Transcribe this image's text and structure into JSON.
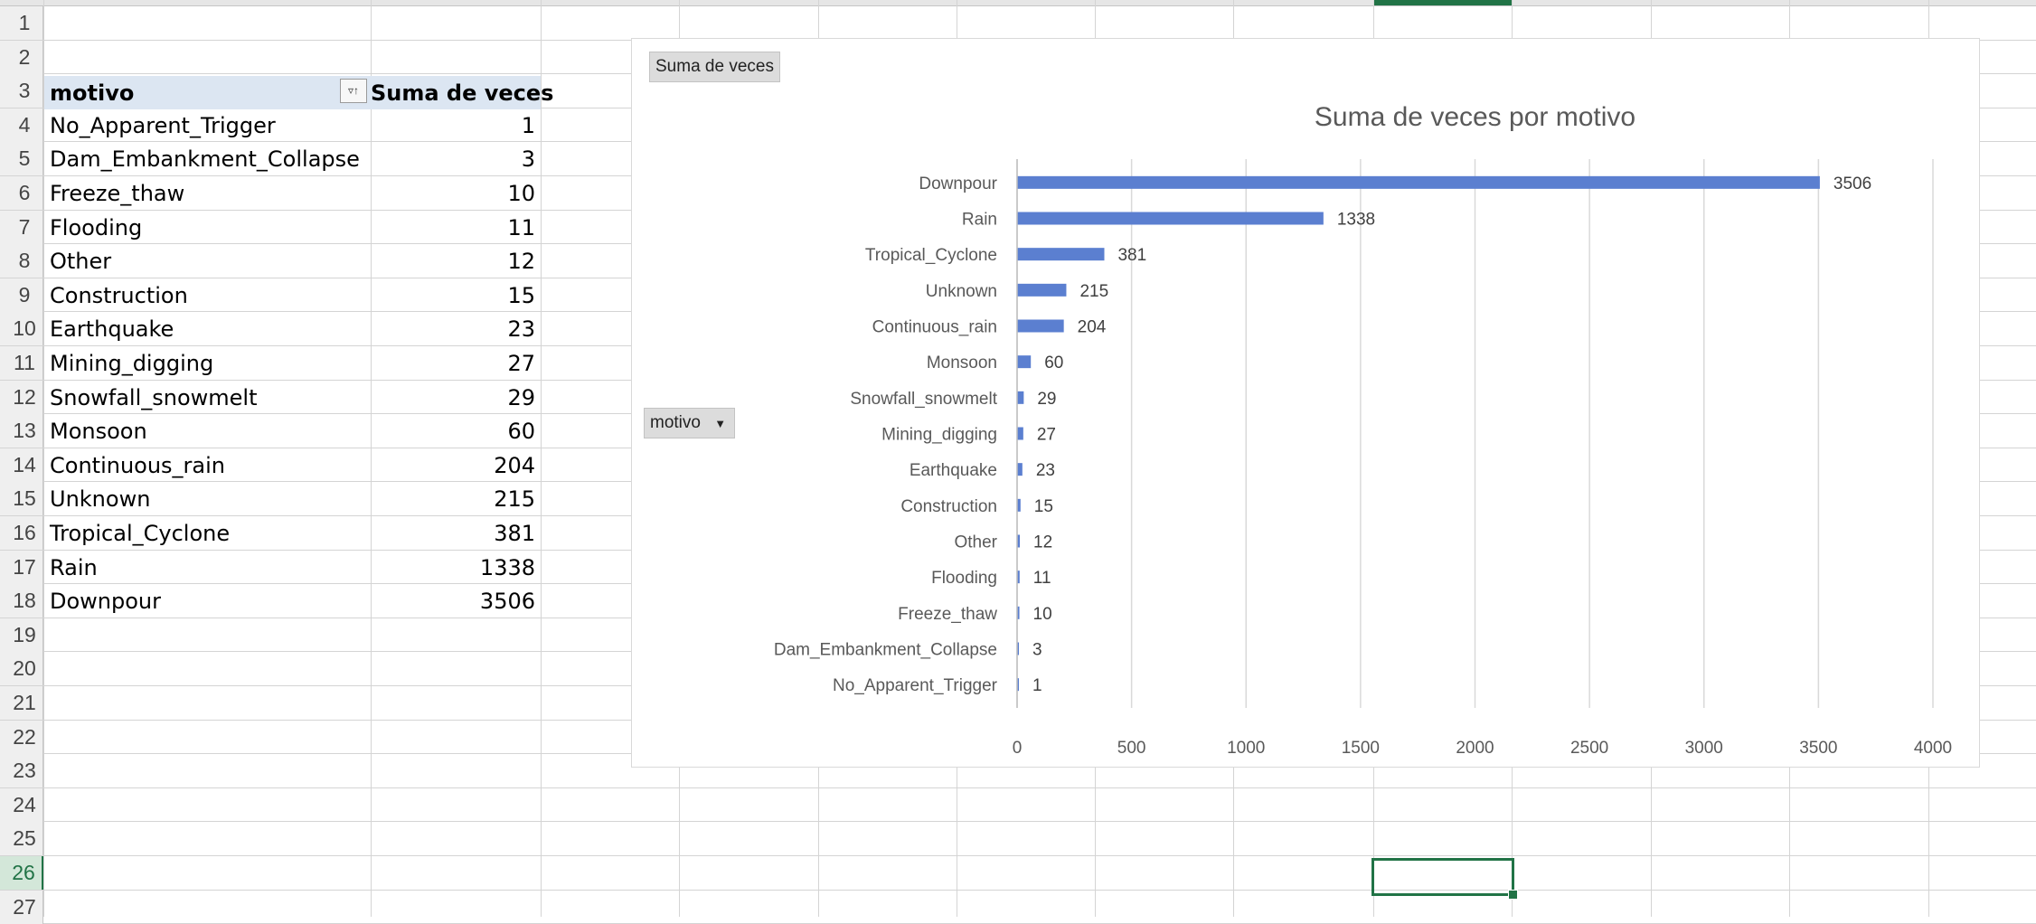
{
  "sheet": {
    "row_numbers": [
      "1",
      "2",
      "3",
      "4",
      "5",
      "6",
      "7",
      "8",
      "9",
      "10",
      "11",
      "12",
      "13",
      "14",
      "15",
      "16",
      "17",
      "18",
      "19",
      "20",
      "21",
      "22",
      "23",
      "24",
      "25",
      "26",
      "27"
    ],
    "selected_row": "26"
  },
  "pivot": {
    "header_field": "motivo",
    "header_value": "Suma de veces",
    "rows": [
      {
        "label": "No_Apparent_Trigger",
        "value": "1"
      },
      {
        "label": "Dam_Embankment_Collapse",
        "value": "3"
      },
      {
        "label": "Freeze_thaw",
        "value": "10"
      },
      {
        "label": "Flooding",
        "value": "11"
      },
      {
        "label": "Other",
        "value": "12"
      },
      {
        "label": "Construction",
        "value": "15"
      },
      {
        "label": "Earthquake",
        "value": "23"
      },
      {
        "label": "Mining_digging",
        "value": "27"
      },
      {
        "label": "Snowfall_snowmelt",
        "value": "29"
      },
      {
        "label": "Monsoon",
        "value": "60"
      },
      {
        "label": "Continuous_rain",
        "value": "204"
      },
      {
        "label": "Unknown",
        "value": "215"
      },
      {
        "label": "Tropical_Cyclone",
        "value": "381"
      },
      {
        "label": "Rain",
        "value": "1338"
      },
      {
        "label": "Downpour",
        "value": "3506"
      }
    ]
  },
  "chart_buttons": {
    "values_field": "Suma de veces",
    "axis_field": "motivo"
  },
  "colors": {
    "bar": "#5b7fd0",
    "selection": "#217346"
  },
  "chart_data": {
    "type": "bar",
    "orientation": "horizontal",
    "title": "Suma de veces por motivo",
    "categories": [
      "Downpour",
      "Rain",
      "Tropical_Cyclone",
      "Unknown",
      "Continuous_rain",
      "Monsoon",
      "Snowfall_snowmelt",
      "Mining_digging",
      "Earthquake",
      "Construction",
      "Other",
      "Flooding",
      "Freeze_thaw",
      "Dam_Embankment_Collapse",
      "No_Apparent_Trigger"
    ],
    "values": [
      3506,
      1338,
      381,
      215,
      204,
      60,
      29,
      27,
      23,
      15,
      12,
      11,
      10,
      3,
      1
    ],
    "xlim": [
      0,
      4000
    ],
    "xticks": [
      0,
      500,
      1000,
      1500,
      2000,
      2500,
      3000,
      3500,
      4000
    ],
    "grid": true,
    "legend": false
  }
}
